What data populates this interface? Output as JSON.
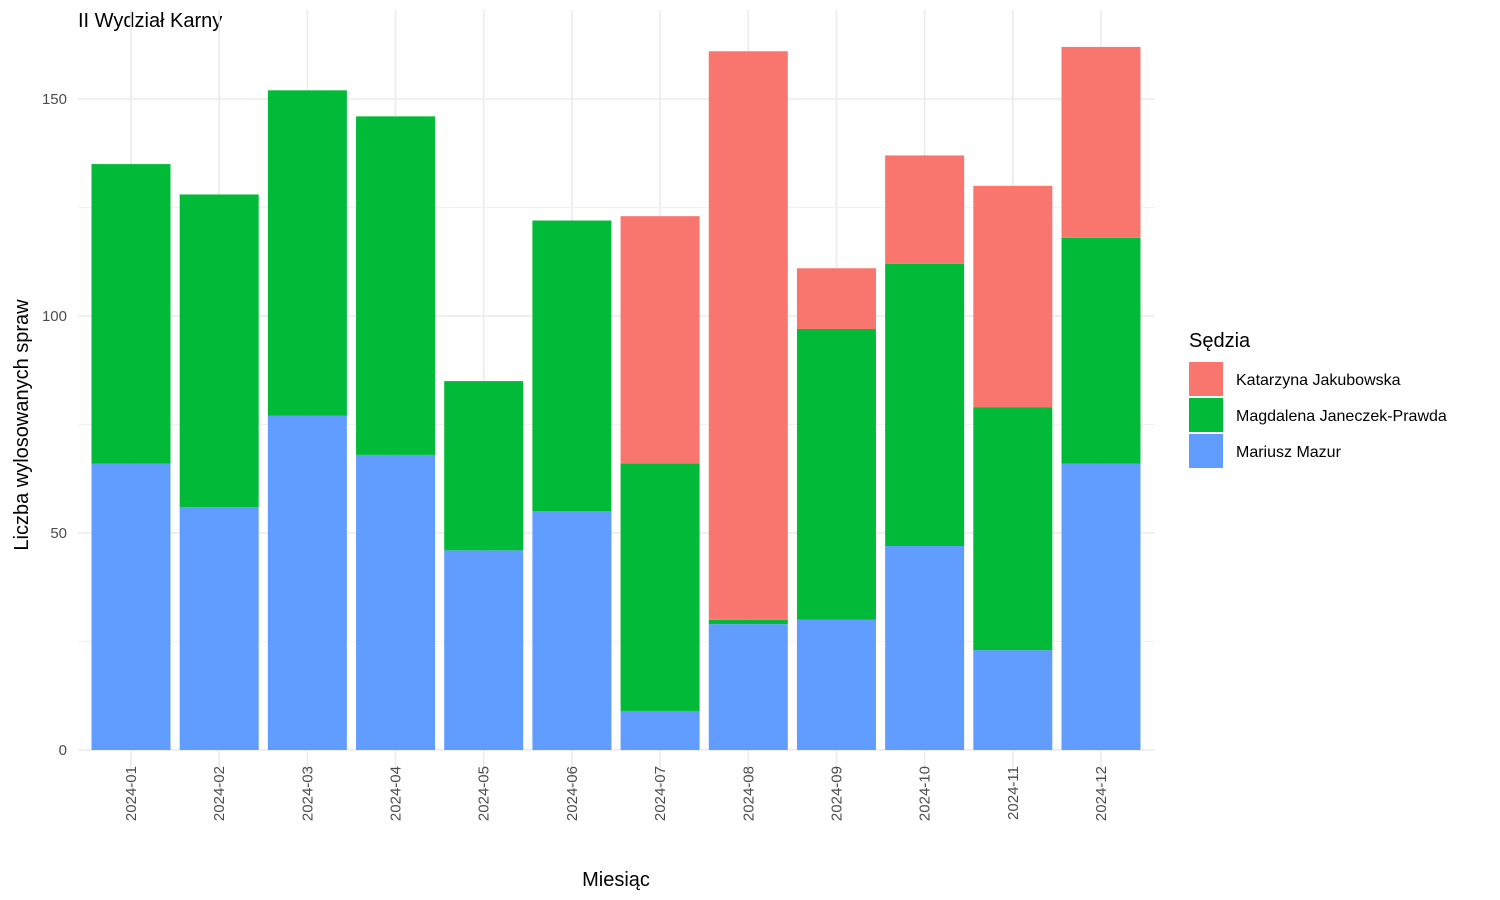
{
  "chart_data": {
    "type": "bar",
    "stacked": true,
    "title": "II Wydział Karny",
    "xlabel": "Miesiąc",
    "ylabel": "Liczba wylosowanych spraw",
    "ylim": [
      0,
      165
    ],
    "yticks": [
      0,
      50,
      100,
      150
    ],
    "grid": true,
    "legend": {
      "title": "Sędzia",
      "position": "right"
    },
    "categories": [
      "2024-01",
      "2024-02",
      "2024-03",
      "2024-04",
      "2024-05",
      "2024-06",
      "2024-07",
      "2024-08",
      "2024-09",
      "2024-10",
      "2024-11",
      "2024-12"
    ],
    "series": [
      {
        "name": "Mariusz Mazur",
        "color": "#619CFF",
        "values": [
          66,
          56,
          77,
          68,
          46,
          55,
          9,
          29,
          30,
          47,
          23,
          66
        ]
      },
      {
        "name": "Magdalena Janeczek-Prawda",
        "color": "#00BA38",
        "values": [
          69,
          72,
          75,
          78,
          39,
          67,
          57,
          1,
          67,
          65,
          56,
          52
        ]
      },
      {
        "name": "Katarzyna Jakubowska",
        "color": "#F8766D",
        "values": [
          0,
          0,
          0,
          0,
          0,
          0,
          57,
          131,
          14,
          25,
          51,
          44
        ]
      }
    ],
    "legend_order": [
      "Katarzyna Jakubowska",
      "Magdalena Janeczek-Prawda",
      "Mariusz Mazur"
    ]
  }
}
